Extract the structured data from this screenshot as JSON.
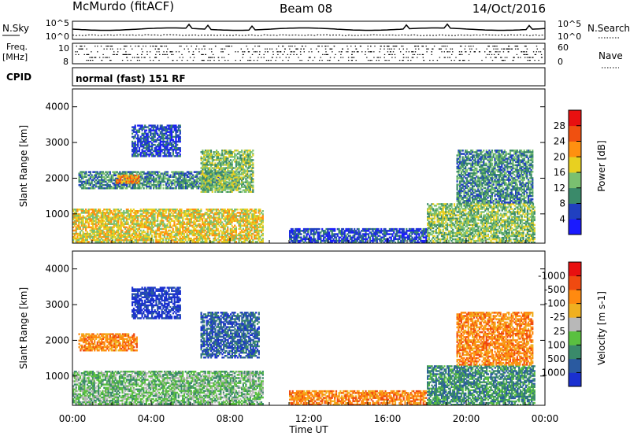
{
  "header": {
    "station": "McMurdo (fitACF)",
    "beam": "Beam 08",
    "date": "14/Oct/2016",
    "cpid_mode": "normal (fast) 151 RF"
  },
  "panels": {
    "nsky_label": "N.Sky",
    "nsearch_label": "N.Search",
    "freq_label_line1": "Freq.",
    "freq_label_line2": "[MHz]",
    "nave_label": "Nave",
    "cpid_label": "CPID",
    "nsky_ticks": [
      "10^5",
      "10^0"
    ],
    "nsearch_ticks": [
      "10^5",
      "10^0"
    ],
    "freq_ticks": [
      "10",
      "8"
    ],
    "nave_ticks": [
      "60",
      "0"
    ]
  },
  "chart_data": [
    {
      "type": "heatmap",
      "name": "power",
      "ylabel": "Slant Range [km]",
      "xlabel": "Time UT",
      "ylim": [
        180,
        4500
      ],
      "yticks": [
        "1000",
        "2000",
        "3000",
        "4000"
      ],
      "xticks": [
        "00:00",
        "04:00",
        "08:00",
        "12:00",
        "16:00",
        "20:00",
        "00:00"
      ],
      "colorbar": {
        "label": "Power [dB]",
        "ticks": [
          "4",
          "8",
          "12",
          "16",
          "20",
          "24",
          "28"
        ],
        "colors": [
          "#1a1aff",
          "#2040c0",
          "#3a8a6a",
          "#7ac070",
          "#e8d020",
          "#ff9010",
          "#f05010",
          "#e81010"
        ]
      },
      "regions": [
        {
          "t0": 0.0,
          "t1": 9.7,
          "r0": 200,
          "r1": 1150,
          "level": 4
        },
        {
          "t0": 0.3,
          "t1": 8.5,
          "r0": 1700,
          "r1": 2200,
          "level": 2
        },
        {
          "t0": 2.2,
          "t1": 3.4,
          "r0": 1850,
          "r1": 2100,
          "level": 5
        },
        {
          "t0": 3.0,
          "t1": 5.5,
          "r0": 2600,
          "r1": 3500,
          "level": 1
        },
        {
          "t0": 6.5,
          "t1": 9.2,
          "r0": 1600,
          "r1": 2800,
          "level": 3
        },
        {
          "t0": 11.0,
          "t1": 18.0,
          "r0": 180,
          "r1": 600,
          "level": 1
        },
        {
          "t0": 18.0,
          "t1": 23.5,
          "r0": 180,
          "r1": 1300,
          "level": 3
        },
        {
          "t0": 19.5,
          "t1": 23.4,
          "r0": 1300,
          "r1": 2800,
          "level": 2
        }
      ]
    },
    {
      "type": "heatmap",
      "name": "velocity",
      "ylabel": "Slant Range [km]",
      "xlabel": "Time UT",
      "ylim": [
        180,
        4500
      ],
      "yticks": [
        "1000",
        "2000",
        "3000",
        "4000"
      ],
      "xticks": [
        "00:00",
        "04:00",
        "08:00",
        "12:00",
        "16:00",
        "20:00",
        "00:00"
      ],
      "colorbar": {
        "label": "Velocity [m s-1]",
        "ticks": [
          "1000",
          "500",
          "100",
          "25",
          "-25",
          "-100",
          "-500",
          "-1000"
        ],
        "colors": [
          "#1a30d0",
          "#2a5aa0",
          "#3a8a6a",
          "#5ac040",
          "#b8b8b8",
          "#f0b020",
          "#ff8a10",
          "#f04a10",
          "#e81010"
        ]
      },
      "regions": [
        {
          "t0": 0.0,
          "t1": 9.7,
          "r0": 200,
          "r1": 1150,
          "level": 3
        },
        {
          "t0": 0.3,
          "t1": 3.3,
          "r0": 1700,
          "r1": 2200,
          "level": 6
        },
        {
          "t0": 3.0,
          "t1": 5.5,
          "r0": 2600,
          "r1": 3500,
          "level": 0
        },
        {
          "t0": 6.5,
          "t1": 9.5,
          "r0": 1500,
          "r1": 2800,
          "level": 1
        },
        {
          "t0": 11.0,
          "t1": 18.0,
          "r0": 180,
          "r1": 600,
          "level": 6
        },
        {
          "t0": 18.0,
          "t1": 23.5,
          "r0": 180,
          "r1": 1300,
          "level": 2
        },
        {
          "t0": 19.5,
          "t1": 23.4,
          "r0": 1300,
          "r1": 2800,
          "level": 6
        }
      ]
    }
  ]
}
